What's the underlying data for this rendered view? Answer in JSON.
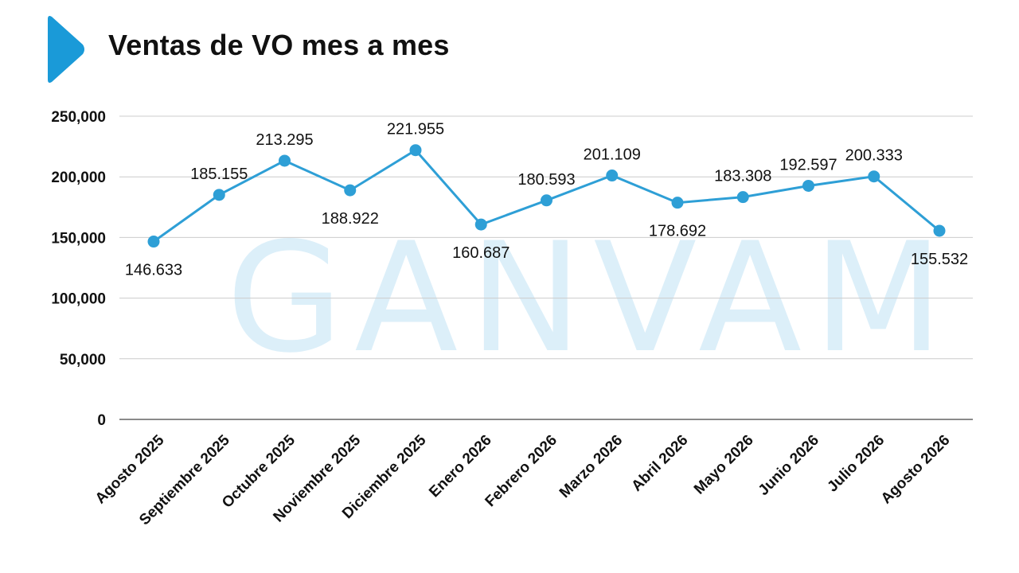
{
  "header": {
    "title": "Ventas de VO mes a mes"
  },
  "watermark": {
    "text": "GANVAM"
  },
  "colors": {
    "accent": "#1a9ad8",
    "line": "#2e9fd6",
    "grid": "#cccccc",
    "text": "#111111"
  },
  "chart_data": {
    "type": "line",
    "title": "Ventas de VO mes a mes",
    "xlabel": "",
    "ylabel": "",
    "ylim": [
      0,
      250000
    ],
    "y_ticks": [
      0,
      50000,
      100000,
      150000,
      200000,
      250000
    ],
    "y_tick_labels": [
      "0",
      "50,000",
      "100,000",
      "150,000",
      "200,000",
      "250,000"
    ],
    "grid": true,
    "legend": "none",
    "categories": [
      "Agosto 2025",
      "Septiembre 2025",
      "Octubre 2025",
      "Noviembre 2025",
      "Diciembre 2025",
      "Enero 2026",
      "Febrero 2026",
      "Marzo 2026",
      "Abril 2026",
      "Mayo 2026",
      "Junio 2026",
      "Julio 2026",
      "Agosto 2026"
    ],
    "series": [
      {
        "values": [
          146633,
          185155,
          213295,
          188922,
          221955,
          160687,
          180593,
          201109,
          178692,
          183308,
          192597,
          200333,
          155532
        ],
        "data_labels": [
          "146.633",
          "185.155",
          "213.295",
          "188.922",
          "221.955",
          "160.687",
          "180.593",
          "201.109",
          "178.692",
          "183.308",
          "192.597",
          "200.333",
          "155.532"
        ]
      }
    ]
  }
}
